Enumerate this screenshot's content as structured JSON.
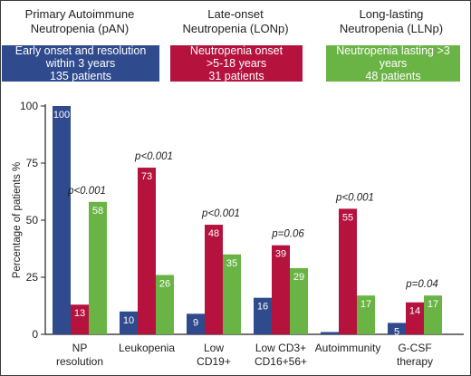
{
  "groups": [
    {
      "title_line1": "Primary Autoimmune",
      "title_line2": "Neutropenia (pAN)",
      "box_line1": "Early onset and resolution",
      "box_line2": "within 3 years",
      "box_line3": "135 patients",
      "color": "#2f4a8d"
    },
    {
      "title_line1": "Late-onset",
      "title_line2": "Neutropenia (LONp)",
      "box_line1": "Neutropenia onset",
      "box_line2": ">5-18 years",
      "box_line3": "31 patients",
      "color": "#b5123d"
    },
    {
      "title_line1": "Long-lasting",
      "title_line2": "Neutropenia (LLNp)",
      "box_line1": "Neutropenia lasting >3 years",
      "box_line2": "48 patients",
      "box_line3": "",
      "color": "#6ab445"
    }
  ],
  "chart_data": {
    "type": "bar",
    "ylabel": "Percentage of patients %",
    "ylim": [
      0,
      100
    ],
    "yticks": [
      0,
      25,
      50,
      75,
      100
    ],
    "categories": [
      {
        "line1": "NP",
        "line2": "resolution"
      },
      {
        "line1": "Leukopenia",
        "line2": ""
      },
      {
        "line1": "Low",
        "line2": "CD19+"
      },
      {
        "line1": "Low CD3+",
        "line2": "CD16+56+"
      },
      {
        "line1": "Autoimmunity",
        "line2": ""
      },
      {
        "line1": "G-CSF",
        "line2": "therapy"
      }
    ],
    "series": [
      {
        "values": [
          100,
          10,
          9,
          16,
          1,
          5
        ],
        "labels": [
          "100",
          "10",
          "9",
          "16",
          "",
          "5"
        ],
        "color": "#2f4a8d"
      },
      {
        "values": [
          13,
          73,
          48,
          39,
          55,
          14
        ],
        "labels": [
          "13",
          "73",
          "48",
          "39",
          "55",
          "14"
        ],
        "color": "#b5123d"
      },
      {
        "values": [
          58,
          26,
          35,
          29,
          17,
          17
        ],
        "labels": [
          "58",
          "26",
          "35",
          "29",
          "17",
          "17"
        ],
        "color": "#6ab445"
      }
    ],
    "annotations": [
      "p<0.001",
      "p<0.001",
      "p<0.001",
      "p=0.06",
      "p<0.001",
      "p=0.04"
    ]
  }
}
